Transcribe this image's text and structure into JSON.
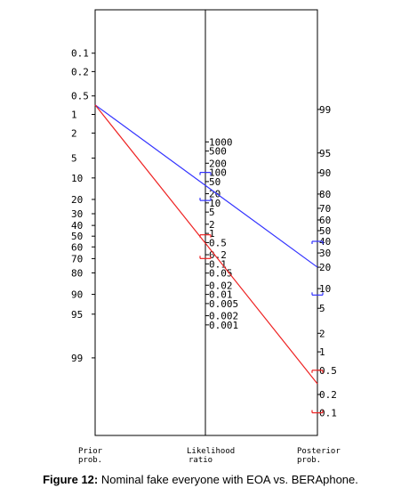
{
  "chart_data": {
    "type": "line",
    "title": "",
    "axes": {
      "prior": {
        "label_lines": [
          "Prior",
          "prob."
        ],
        "ticks": [
          "0.1",
          "0.2",
          "0.5",
          "1",
          "2",
          "5",
          "10",
          "20",
          "30",
          "40",
          "50",
          "60",
          "70",
          "80",
          "90",
          "95",
          "99"
        ]
      },
      "likelihood": {
        "label_lines": [
          "Likelihood",
          "ratio"
        ],
        "ticks": [
          "1000",
          "500",
          "200",
          "100",
          "50",
          "20",
          "10",
          "5",
          "2",
          "1",
          "0.5",
          "0.2",
          "0.1",
          "0.05",
          "0.02",
          "0.01",
          "0.005",
          "0.002",
          "0.001"
        ]
      },
      "posterior": {
        "label_lines": [
          "Posterior",
          "prob."
        ],
        "ticks": [
          "99",
          "95",
          "90",
          "80",
          "70",
          "60",
          "50",
          "40",
          "30",
          "20",
          "10",
          "5",
          "2",
          "1",
          "0.5",
          "0.2",
          "0.1"
        ]
      }
    },
    "series": [
      {
        "color": "#3333ff",
        "prior_prob": 0.7,
        "likelihood_ratio": 35,
        "likelihood_ci": [
          12,
          100
        ],
        "posterior_prob": 20,
        "posterior_ci": [
          8,
          40
        ]
      },
      {
        "color": "#ee2222",
        "prior_prob": 0.7,
        "likelihood_ratio": 0.3,
        "likelihood_ci": [
          0.15,
          0.9
        ],
        "posterior_prob": 0.3,
        "posterior_ci": [
          0.1,
          0.5
        ]
      }
    ]
  },
  "caption": {
    "label": "Figure 12:",
    "text": " Nominal fake everyone with EOA vs. BERAphone."
  }
}
